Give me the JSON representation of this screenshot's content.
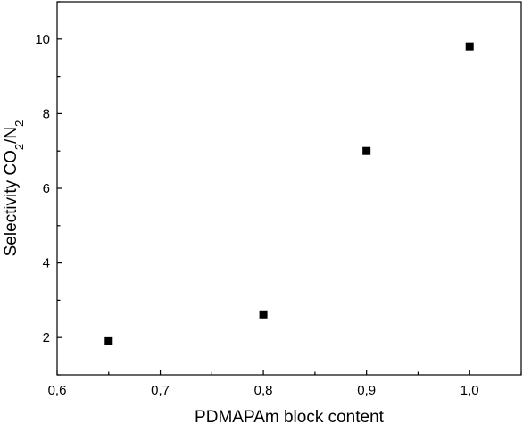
{
  "chart_data": {
    "type": "scatter",
    "title": "",
    "xlabel": "PDMAPAm block content",
    "ylabel": {
      "main": "Selectivity CO",
      "sub1": "2",
      "mid": "/N",
      "sub2": "2"
    },
    "xlim": [
      0.6,
      1.05
    ],
    "ylim": [
      1.0,
      11.0
    ],
    "x_ticks": [
      {
        "value": 0.6,
        "label": "0,6"
      },
      {
        "value": 0.7,
        "label": "0,7"
      },
      {
        "value": 0.8,
        "label": "0,8"
      },
      {
        "value": 0.9,
        "label": "0,9"
      },
      {
        "value": 1.0,
        "label": "1,0"
      }
    ],
    "y_ticks": [
      {
        "value": 2,
        "label": "2"
      },
      {
        "value": 4,
        "label": "4"
      },
      {
        "value": 6,
        "label": "6"
      },
      {
        "value": 8,
        "label": "8"
      },
      {
        "value": 10,
        "label": "10"
      }
    ],
    "grid": false,
    "legend": "none",
    "marker": "square",
    "marker_color": "#000000",
    "series": [
      {
        "x": [
          0.65,
          0.8,
          0.9,
          1.0
        ],
        "y": [
          1.9,
          2.62,
          7.0,
          9.8
        ]
      }
    ]
  }
}
